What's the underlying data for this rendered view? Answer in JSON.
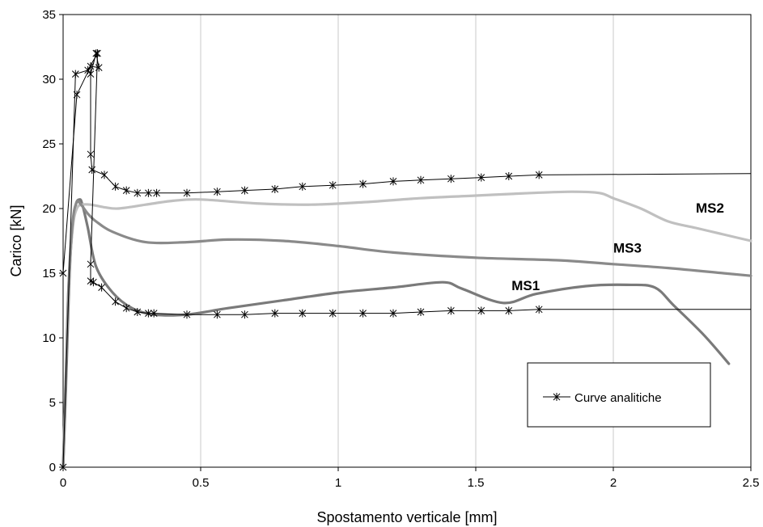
{
  "chart_data": {
    "type": "line",
    "title": "",
    "xlabel": "Spostamento verticale [mm]",
    "ylabel": "Carico [kN]",
    "xlim": [
      0,
      2.5
    ],
    "ylim": [
      0,
      35
    ],
    "xticks": [
      0,
      0.5,
      1,
      1.5,
      2,
      2.5
    ],
    "yticks": [
      0,
      5,
      10,
      15,
      20,
      25,
      30,
      35
    ],
    "xtick_labels": [
      "0",
      "0.5",
      "1",
      "1.5",
      "2",
      "2.5"
    ],
    "ytick_labels": [
      "0",
      "5",
      "10",
      "15",
      "20",
      "25",
      "30",
      "35"
    ],
    "grid": "vertical",
    "legend": {
      "position": "bottom-right",
      "entries": [
        "Curve analitiche"
      ]
    },
    "series": [
      {
        "name": "MS1",
        "color": "#7a7a7a",
        "style": "smooth",
        "x": [
          0,
          0.01,
          0.02,
          0.03,
          0.045,
          0.06,
          0.07,
          0.09,
          0.12,
          0.18,
          0.25,
          0.33,
          0.45,
          0.6,
          0.8,
          1.0,
          1.2,
          1.38,
          1.45,
          1.6,
          1.72,
          1.9,
          2.05,
          2.15,
          2.22,
          2.33,
          2.42
        ],
        "y": [
          0,
          6,
          13,
          17.5,
          20.2,
          20.7,
          20.3,
          18.5,
          15.5,
          13.5,
          12.3,
          11.8,
          11.8,
          12.3,
          12.9,
          13.5,
          13.9,
          14.3,
          13.8,
          12.7,
          13.4,
          14,
          14.1,
          13.9,
          12.5,
          10.2,
          8
        ]
      },
      {
        "name": "MS2",
        "color": "#c0c0c0",
        "style": "smooth",
        "x": [
          0,
          0.01,
          0.02,
          0.035,
          0.05,
          0.07,
          0.1,
          0.15,
          0.2,
          0.3,
          0.4,
          0.5,
          0.7,
          0.9,
          1.1,
          1.3,
          1.5,
          1.7,
          1.85,
          1.95,
          2.0,
          2.1,
          2.2,
          2.3,
          2.4,
          2.5
        ],
        "y": [
          0,
          7,
          14,
          18.5,
          20,
          20.3,
          20.3,
          20.1,
          20,
          20.3,
          20.6,
          20.7,
          20.4,
          20.3,
          20.5,
          20.8,
          21,
          21.2,
          21.3,
          21.2,
          20.8,
          20,
          19,
          18.5,
          18,
          17.5
        ]
      },
      {
        "name": "MS3",
        "color": "#8a8a8a",
        "style": "smooth",
        "x": [
          0,
          0.01,
          0.02,
          0.035,
          0.05,
          0.065,
          0.09,
          0.12,
          0.18,
          0.3,
          0.45,
          0.6,
          0.8,
          1.0,
          1.2,
          1.5,
          1.8,
          2.0,
          2.2,
          2.4,
          2.5
        ],
        "y": [
          0,
          7,
          14,
          19,
          20.5,
          20.3,
          19.6,
          19,
          18.2,
          17.4,
          17.4,
          17.6,
          17.5,
          17.1,
          16.6,
          16.2,
          16,
          15.7,
          15.4,
          15,
          14.8
        ]
      },
      {
        "name": "Curve analitiche",
        "color": "#000000",
        "style": "marker-star",
        "x": [
          0,
          0.05,
          0.1,
          0.13,
          0.12,
          0.1,
          0.1,
          0.105,
          0.15,
          0.19,
          0.23,
          0.27,
          0.31,
          0.34,
          0.45,
          0.56,
          0.66,
          0.77,
          0.87,
          0.98,
          1.09,
          1.2,
          1.3,
          1.41,
          1.52,
          1.62,
          1.73
        ],
        "y": [
          15,
          28.8,
          31,
          30.9,
          32,
          30.4,
          24.2,
          23,
          22.6,
          21.7,
          21.4,
          21.2,
          21.2,
          21.2,
          21.2,
          21.3,
          21.4,
          21.5,
          21.7,
          21.8,
          21.9,
          22.1,
          22.2,
          22.3,
          22.4,
          22.5,
          22.6
        ],
        "extension": {
          "x": [
            1.73,
            2.5
          ],
          "y": [
            22.6,
            22.7
          ]
        }
      },
      {
        "name": "Curve analitiche",
        "color": "#000000",
        "style": "marker-star",
        "x": [
          0,
          0.045,
          0.09,
          0.125,
          0.1,
          0.1,
          0.11,
          0.14,
          0.19,
          0.23,
          0.27,
          0.31,
          0.33,
          0.45,
          0.56,
          0.66,
          0.77,
          0.87,
          0.98,
          1.09,
          1.2,
          1.3,
          1.41,
          1.52,
          1.62,
          1.73
        ],
        "y": [
          0,
          30.4,
          30.7,
          32,
          15.7,
          14.4,
          14.3,
          13.9,
          12.8,
          12.3,
          12,
          11.9,
          11.9,
          11.8,
          11.8,
          11.8,
          11.9,
          11.9,
          11.9,
          11.9,
          11.9,
          12,
          12.1,
          12.1,
          12.1,
          12.2
        ],
        "extension": {
          "x": [
            1.73,
            2.5
          ],
          "y": [
            12.2,
            12.2
          ]
        }
      }
    ],
    "labels": [
      {
        "text": "MS1",
        "x": 1.63,
        "y": 13.7
      },
      {
        "text": "MS2",
        "x": 2.3,
        "y": 19.7
      },
      {
        "text": "MS3",
        "x": 2.0,
        "y": 16.6
      }
    ]
  }
}
